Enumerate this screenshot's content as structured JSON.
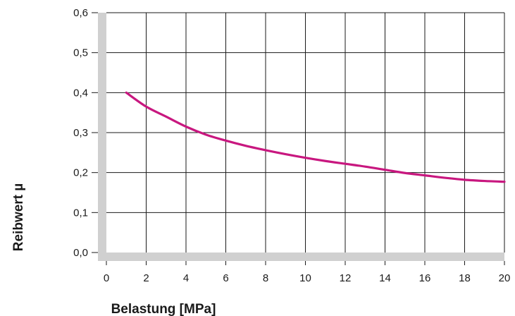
{
  "chart_data": {
    "type": "line",
    "title": "",
    "xlabel": "Belastung [MPa]",
    "ylabel": "Reibwert µ",
    "xlim": [
      0,
      20
    ],
    "ylim": [
      0,
      0.6
    ],
    "x_ticks": [
      0,
      2,
      4,
      6,
      8,
      10,
      12,
      14,
      16,
      18,
      20
    ],
    "x_tick_labels": [
      "0",
      "2",
      "4",
      "6",
      "8",
      "10",
      "12",
      "14",
      "16",
      "18",
      "20"
    ],
    "y_ticks": [
      0,
      0.1,
      0.2,
      0.3,
      0.4,
      0.5,
      0.6
    ],
    "y_tick_labels": [
      "0,0",
      "0,1",
      "0,2",
      "0,3",
      "0,4",
      "0,5",
      "0,6"
    ],
    "grid": true,
    "series": [
      {
        "x": [
          1,
          2,
          3,
          4,
          5,
          6,
          7,
          8,
          9,
          10,
          11,
          12,
          13,
          14,
          15,
          16,
          17,
          18,
          19,
          20
        ],
        "y": [
          0.4,
          0.365,
          0.34,
          0.315,
          0.295,
          0.28,
          0.267,
          0.256,
          0.246,
          0.237,
          0.229,
          0.222,
          0.215,
          0.207,
          0.199,
          0.193,
          0.187,
          0.182,
          0.179,
          0.177
        ],
        "color": "#c8177f"
      }
    ],
    "colors": {
      "axis_band": "#d0d0d0",
      "grid": "#1a1a1a"
    }
  }
}
